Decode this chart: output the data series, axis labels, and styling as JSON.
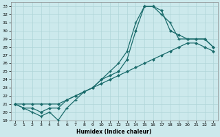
{
  "xlabel": "Humidex (Indice chaleur)",
  "ylabel": "",
  "xlim": [
    -0.5,
    23.5
  ],
  "ylim": [
    19,
    33.5
  ],
  "yticks": [
    19,
    20,
    21,
    22,
    23,
    24,
    25,
    26,
    27,
    28,
    29,
    30,
    31,
    32,
    33
  ],
  "xticks": [
    0,
    1,
    2,
    3,
    4,
    5,
    6,
    7,
    8,
    9,
    10,
    11,
    12,
    13,
    14,
    15,
    16,
    17,
    18,
    19,
    20,
    21,
    22,
    23
  ],
  "bg_color": "#cce9ec",
  "line_color": "#1a6b6b",
  "grid_color": "#b0d5d8",
  "line1_x": [
    0,
    1,
    2,
    3,
    4,
    5,
    6,
    7,
    8,
    9,
    10,
    11,
    12,
    13,
    14,
    15,
    16,
    17,
    18,
    19,
    20,
    21,
    22,
    23
  ],
  "line1_y": [
    21,
    20.5,
    20,
    19.5,
    20,
    19,
    20.5,
    21.5,
    22.5,
    23,
    24,
    25,
    26,
    27.5,
    31,
    33,
    33,
    32,
    31,
    29,
    29,
    29,
    29,
    28
  ],
  "line2_x": [
    0,
    1,
    2,
    3,
    4,
    5,
    6,
    7,
    8,
    9,
    10,
    11,
    12,
    13,
    14,
    15,
    16,
    17,
    18,
    19,
    20,
    21,
    22,
    23
  ],
  "line2_y": [
    21,
    20.5,
    20.5,
    20,
    20.5,
    20.5,
    21.5,
    22,
    22.5,
    23,
    24,
    24.5,
    25,
    26.5,
    30,
    33,
    33,
    32.5,
    30,
    29.5,
    29,
    29,
    29,
    28
  ],
  "line3_x": [
    0,
    1,
    2,
    3,
    4,
    5,
    6,
    7,
    8,
    9,
    10,
    11,
    12,
    13,
    14,
    15,
    16,
    17,
    18,
    19,
    20,
    21,
    22,
    23
  ],
  "line3_y": [
    21,
    21,
    21,
    21,
    21,
    21,
    21.5,
    22,
    22.5,
    23,
    23.5,
    24,
    24.5,
    25,
    25.5,
    26,
    26.5,
    27,
    27.5,
    28,
    28.5,
    28.5,
    28,
    27.5
  ]
}
